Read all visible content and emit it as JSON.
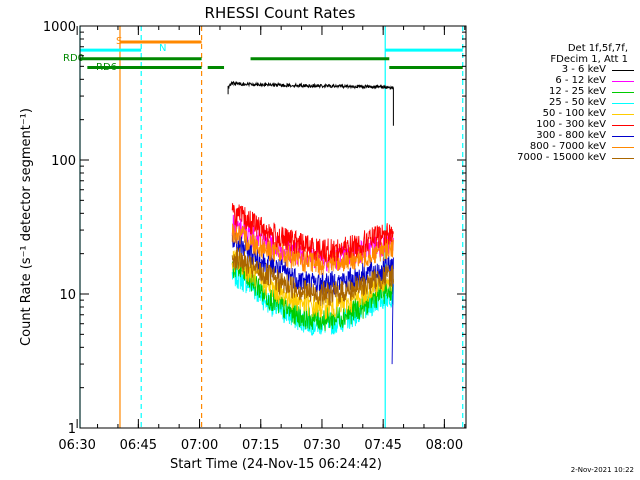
{
  "chart_data": {
    "type": "line",
    "title": "RHESSI Count Rates",
    "xlabel": "Start Time (24-Nov-15 06:24:42)",
    "ylabel": "Count Rate (s⁻¹ detector segment⁻¹)",
    "yscale": "log",
    "ylim": [
      1,
      1000
    ],
    "xlim_minutes": [
      6.7,
      101.3
    ],
    "x_unit": "minutes after 06:24:00",
    "x_ticks": [
      {
        "label": "06:30",
        "value": 6
      },
      {
        "label": "06:45",
        "value": 21
      },
      {
        "label": "07:00",
        "value": 36
      },
      {
        "label": "07:15",
        "value": 51
      },
      {
        "label": "07:30",
        "value": 66
      },
      {
        "label": "07:45",
        "value": 81
      },
      {
        "label": "08:00",
        "value": 96
      }
    ],
    "y_ticks": [
      {
        "label": "1",
        "value": 1
      },
      {
        "label": "10",
        "value": 10
      },
      {
        "label": "100",
        "value": 100
      },
      {
        "label": "1000",
        "value": 1000
      }
    ],
    "legend_header": [
      "Det 1f,5f,7f,",
      "FDecim 1, Att 1"
    ],
    "series": [
      {
        "name": "3 - 6 keV",
        "color": "#000000",
        "x": [
          43,
          44,
          46,
          48,
          52,
          56,
          60,
          64,
          68,
          72,
          76,
          80,
          82,
          83.5
        ],
        "values": [
          350,
          375,
          370,
          368,
          365,
          362,
          360,
          358,
          356,
          355,
          353,
          352,
          350,
          345
        ]
      },
      {
        "name": "6 - 12 keV",
        "color": "#ff00ff",
        "x": [
          44,
          46,
          48,
          52,
          56,
          60,
          64,
          68,
          72,
          76,
          80,
          83.5
        ],
        "values": [
          32,
          30,
          28,
          25,
          22,
          20,
          19,
          18,
          19,
          21,
          23,
          24
        ]
      },
      {
        "name": "12 - 25 keV",
        "color": "#00cc00",
        "x": [
          44,
          46,
          48,
          52,
          56,
          60,
          64,
          68,
          72,
          76,
          80,
          83.5
        ],
        "values": [
          16,
          15,
          13,
          10,
          8,
          7,
          6.5,
          6.5,
          7,
          8,
          10,
          11
        ]
      },
      {
        "name": "25 - 50 keV",
        "color": "#00ffff",
        "x": [
          44,
          46,
          48,
          52,
          56,
          60,
          64,
          68,
          72,
          76,
          80,
          83.5
        ],
        "values": [
          14,
          13,
          12,
          9,
          7.5,
          6.5,
          6,
          6,
          6.5,
          7.5,
          9,
          10
        ]
      },
      {
        "name": "50 - 100 keV",
        "color": "#ffcc00",
        "x": [
          44,
          46,
          48,
          52,
          56,
          60,
          64,
          68,
          72,
          76,
          80,
          83.5
        ],
        "values": [
          18,
          17,
          15,
          12,
          10,
          9,
          8,
          8,
          8.5,
          10,
          12,
          13
        ]
      },
      {
        "name": "100 - 300 keV",
        "color": "#ff0000",
        "x": [
          44,
          46,
          48,
          52,
          56,
          60,
          64,
          68,
          72,
          76,
          80,
          83.5
        ],
        "values": [
          40,
          38,
          35,
          30,
          26,
          24,
          22,
          21,
          22,
          24,
          27,
          29
        ]
      },
      {
        "name": "300 - 800 keV",
        "color": "#0000cc",
        "x": [
          44,
          46,
          48,
          52,
          56,
          60,
          64,
          68,
          72,
          76,
          80,
          83.5
        ],
        "values": [
          24,
          23,
          21,
          17,
          15,
          13,
          12,
          12,
          12.5,
          14,
          15,
          16
        ]
      },
      {
        "name": "800 - 7000 keV",
        "color": "#ff8800",
        "x": [
          44,
          46,
          48,
          52,
          56,
          60,
          64,
          68,
          72,
          76,
          80,
          83.5
        ],
        "values": [
          29,
          27,
          25,
          22,
          20,
          18,
          17,
          17,
          18,
          19,
          21,
          23
        ]
      },
      {
        "name": "7000 - 15000 keV",
        "color": "#aa6600",
        "x": [
          44,
          46,
          48,
          52,
          56,
          60,
          64,
          68,
          72,
          76,
          80,
          83.5
        ],
        "values": [
          19,
          18,
          16,
          14,
          12,
          11,
          10,
          10,
          10.5,
          11.5,
          13,
          14
        ]
      }
    ],
    "flag_bars": [
      {
        "label": "S",
        "color": "#ff8800",
        "y": 760,
        "segments": [
          [
            16.5,
            36.5
          ]
        ]
      },
      {
        "label": "N",
        "color": "#00ffff",
        "y": 660,
        "segments": [
          [
            6.7,
            21.7
          ],
          [
            81.5,
            100.5
          ]
        ]
      },
      {
        "label": "RD0",
        "color": "#008800",
        "y": 570,
        "segments": [
          [
            6.7,
            36.5
          ],
          [
            48.5,
            82.5
          ]
        ]
      },
      {
        "label": "RD6",
        "color": "#008800",
        "y": 490,
        "segments": [
          [
            8.5,
            36.5
          ],
          [
            38,
            42
          ],
          [
            82.5,
            100.5
          ]
        ]
      }
    ],
    "vertical_lines": [
      {
        "x": 6.7,
        "color": "#00ffff",
        "style": "solid"
      },
      {
        "x": 16.5,
        "color": "#ff8800",
        "style": "solid"
      },
      {
        "x": 21.7,
        "color": "#00ffff",
        "style": "dashed"
      },
      {
        "x": 36.5,
        "color": "#ff8800",
        "style": "dashed"
      },
      {
        "x": 81.5,
        "color": "#00ffff",
        "style": "solid"
      },
      {
        "x": 100.5,
        "color": "#00ffff",
        "style": "dashed"
      }
    ]
  },
  "timestamp": "2-Nov-2021 10:22"
}
